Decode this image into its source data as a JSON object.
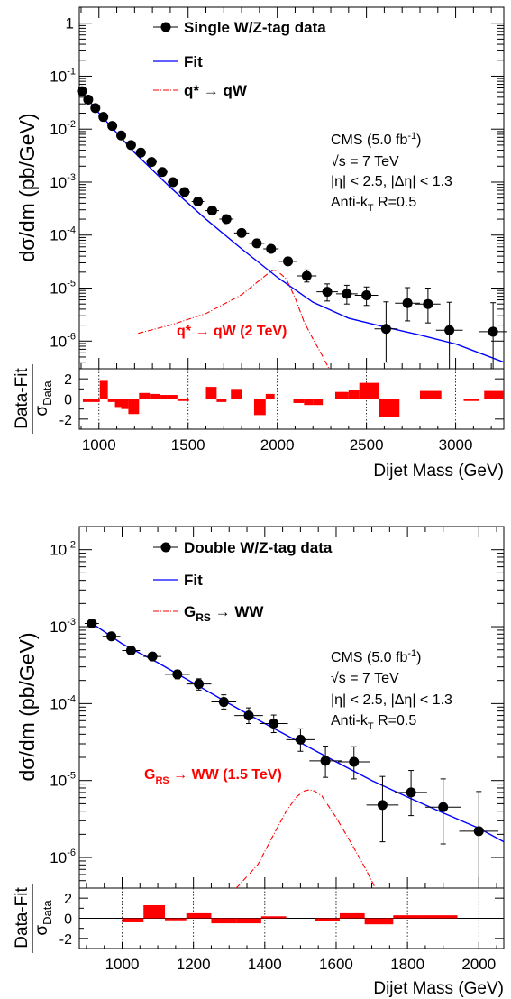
{
  "charts": [
    {
      "legend": {
        "data": "Single W/Z-tag data",
        "fit": "Fit",
        "signal": "q* → qW"
      },
      "info": {
        "line1": "CMS (5.0 fb",
        "line1_sup": "-1",
        "line1_end": ")",
        "line2": "√s = 7 TeV",
        "line3": "|η| < 2.5, |Δη| < 1.3",
        "line4_a": "Anti-k",
        "line4_sub": "T",
        "line4_b": " R=0.5"
      },
      "signal_label": "q* → qW (2 TeV)",
      "ylabel": "dσ/dm (pb/GeV)",
      "xlabel": "Dijet Mass (GeV)",
      "ratio_ylabel_num": "Data-Fit",
      "ratio_ylabel_den": "σ",
      "ratio_ylabel_den_sub": "Data",
      "x_ticks": [
        "1000",
        "1500",
        "2000",
        "2500",
        "3000"
      ],
      "y_ticks": [
        "10",
        "10",
        "10",
        "10",
        "10",
        "10",
        "10"
      ],
      "y_tick_exps": [
        "-6",
        "-5",
        "-4",
        "-3",
        "-2",
        "-1",
        ""
      ],
      "y_tick_main_one": "1",
      "ratio_ticks": [
        "2",
        "0",
        "-2"
      ]
    },
    {
      "legend": {
        "data": "Double W/Z-tag data",
        "fit": "Fit",
        "signal": "G",
        "signal_sub": "RS",
        "signal_end": " → WW"
      },
      "info": {
        "line1": "CMS (5.0 fb",
        "line1_sup": "-1",
        "line1_end": ")",
        "line2": "√s = 7 TeV",
        "line3": "|η| < 2.5, |Δη| < 1.3",
        "line4_a": "Anti-k",
        "line4_sub": "T",
        "line4_b": " R=0.5"
      },
      "signal_label": "G",
      "signal_label_sub": "RS",
      "signal_label_end": " → WW (1.5 TeV)",
      "ylabel": "dσ/dm (pb/GeV)",
      "xlabel": "Dijet Mass (GeV)",
      "ratio_ylabel_num": "Data-Fit",
      "ratio_ylabel_den": "σ",
      "ratio_ylabel_den_sub": "Data",
      "x_ticks": [
        "1000",
        "1200",
        "1400",
        "1600",
        "1800",
        "2000"
      ],
      "y_ticks": [
        "10",
        "10",
        "10",
        "10",
        "10"
      ],
      "y_tick_exps": [
        "-6",
        "-5",
        "-4",
        "-3",
        "-2"
      ],
      "ratio_ticks": [
        "2",
        "0",
        "-2"
      ]
    }
  ],
  "chart_data": [
    {
      "type": "scatter",
      "xlabel": "Dijet Mass (GeV)",
      "ylabel": "dσ/dm (pb/GeV)",
      "yscale": "log",
      "xlim": [
        890,
        3270
      ],
      "ylim": [
        3e-07,
        2.0
      ],
      "ratio_ylim": [
        -3,
        3
      ],
      "series": [
        {
          "name": "Single W/Z-tag data",
          "points": [
            {
              "x": 905,
              "y": 0.052,
              "xerr": 15,
              "yerr_up": 0,
              "yerr_down": 0
            },
            {
              "x": 940,
              "y": 0.036,
              "xerr": 18,
              "yerr_up": 0,
              "yerr_down": 0
            },
            {
              "x": 980,
              "y": 0.025,
              "xerr": 20,
              "yerr_up": 0,
              "yerr_down": 0
            },
            {
              "x": 1025,
              "y": 0.017,
              "xerr": 22,
              "yerr_up": 0,
              "yerr_down": 0
            },
            {
              "x": 1075,
              "y": 0.0115,
              "xerr": 24,
              "yerr_up": 0,
              "yerr_down": 0
            },
            {
              "x": 1125,
              "y": 0.0076,
              "xerr": 25,
              "yerr_up": 0,
              "yerr_down": 0
            },
            {
              "x": 1180,
              "y": 0.005,
              "xerr": 27,
              "yerr_up": 0,
              "yerr_down": 0
            },
            {
              "x": 1235,
              "y": 0.0036,
              "xerr": 28,
              "yerr_up": 0,
              "yerr_down": 0
            },
            {
              "x": 1295,
              "y": 0.0024,
              "xerr": 30,
              "yerr_up": 0,
              "yerr_down": 0
            },
            {
              "x": 1355,
              "y": 0.00155,
              "xerr": 30,
              "yerr_up": 0,
              "yerr_down": 0
            },
            {
              "x": 1415,
              "y": 0.001,
              "xerr": 30,
              "yerr_up": 0,
              "yerr_down": 0
            },
            {
              "x": 1480,
              "y": 0.00065,
              "xerr": 32,
              "yerr_up": 0,
              "yerr_down": 0
            },
            {
              "x": 1555,
              "y": 0.00043,
              "xerr": 35,
              "yerr_up": 0,
              "yerr_down": 0
            },
            {
              "x": 1635,
              "y": 0.00029,
              "xerr": 38,
              "yerr_up": 0,
              "yerr_down": 0
            },
            {
              "x": 1715,
              "y": 0.0002,
              "xerr": 40,
              "yerr_up": 0,
              "yerr_down": 0
            },
            {
              "x": 1800,
              "y": 0.00011,
              "xerr": 42,
              "yerr_up": 0,
              "yerr_down": 0
            },
            {
              "x": 1885,
              "y": 7e-05,
              "xerr": 43,
              "yerr_up": 0,
              "yerr_down": 0
            },
            {
              "x": 1965,
              "y": 5.5e-05,
              "xerr": 43,
              "yerr_up": 0,
              "yerr_down": 0
            },
            {
              "x": 2060,
              "y": 3.2e-05,
              "xerr": 50,
              "yerr_up": 6e-06,
              "yerr_down": 5e-06
            },
            {
              "x": 2165,
              "y": 1.7e-05,
              "xerr": 55,
              "yerr_up": 5e-06,
              "yerr_down": 4e-06
            },
            {
              "x": 2280,
              "y": 8.5e-06,
              "xerr": 60,
              "yerr_up": 3.5e-06,
              "yerr_down": 2.8e-06
            },
            {
              "x": 2390,
              "y": 7.8e-06,
              "xerr": 60,
              "yerr_up": 3.5e-06,
              "yerr_down": 2.8e-06
            },
            {
              "x": 2500,
              "y": 7.3e-06,
              "xerr": 65,
              "yerr_up": 3.2e-06,
              "yerr_down": 2.6e-06
            },
            {
              "x": 2610,
              "y": 1.7e-06,
              "xerr": 65,
              "yerr_up": 3.8e-06,
              "yerr_down": 1.3e-06
            },
            {
              "x": 2730,
              "y": 5.2e-06,
              "xerr": 70,
              "yerr_up": 5e-06,
              "yerr_down": 2.8e-06
            },
            {
              "x": 2845,
              "y": 5e-06,
              "xerr": 70,
              "yerr_up": 5e-06,
              "yerr_down": 2.8e-06
            },
            {
              "x": 2965,
              "y": 1.6e-06,
              "xerr": 75,
              "yerr_up": 3.8e-06,
              "yerr_down": 1.3e-06
            },
            {
              "x": 3210,
              "y": 1.5e-06,
              "xerr": 80,
              "yerr_up": 3.8e-06,
              "yerr_down": 1.3e-06
            }
          ]
        },
        {
          "name": "Fit",
          "type": "line",
          "x": [
            890,
            1000,
            1200,
            1400,
            1600,
            1800,
            2000,
            2200,
            2400,
            2600,
            2800,
            3000,
            3270
          ],
          "y": [
            0.06,
            0.02,
            0.0036,
            0.0008,
            0.0002,
            5.5e-05,
            1.6e-05,
            5.4e-06,
            2.7e-06,
            1.85e-06,
            1.3e-06,
            8.8e-07,
            4e-07
          ]
        },
        {
          "name": "q* → qW",
          "type": "line",
          "x": [
            1220,
            1400,
            1600,
            1800,
            1900,
            1950,
            1980,
            2000,
            2050,
            2100,
            2150,
            2200,
            2250,
            2290
          ],
          "y": [
            1.4e-06,
            2e-06,
            3.3e-06,
            7.5e-06,
            1.4e-05,
            1.9e-05,
            2.2e-05,
            2.1e-05,
            1.5e-05,
            6.5e-06,
            2.3e-06,
            1.1e-06,
            5.5e-07,
            3e-07
          ]
        }
      ],
      "residuals": [
        {
          "x0": 910,
          "x1": 1005,
          "v": -0.3
        },
        {
          "x0": 1005,
          "x1": 1050,
          "v": 1.8
        },
        {
          "x0": 1050,
          "x1": 1090,
          "v": -0.3
        },
        {
          "x0": 1090,
          "x1": 1125,
          "v": -0.8
        },
        {
          "x0": 1125,
          "x1": 1165,
          "v": -1.0
        },
        {
          "x0": 1165,
          "x1": 1225,
          "v": -1.5
        },
        {
          "x0": 1225,
          "x1": 1285,
          "v": 0.6
        },
        {
          "x0": 1285,
          "x1": 1345,
          "v": 0.5
        },
        {
          "x0": 1345,
          "x1": 1385,
          "v": 0.4
        },
        {
          "x0": 1385,
          "x1": 1440,
          "v": 0.4
        },
        {
          "x0": 1440,
          "x1": 1505,
          "v": -0.2
        },
        {
          "x0": 1600,
          "x1": 1660,
          "v": 1.2
        },
        {
          "x0": 1660,
          "x1": 1715,
          "v": -0.3
        },
        {
          "x0": 1740,
          "x1": 1800,
          "v": 1.0
        },
        {
          "x0": 1870,
          "x1": 1935,
          "v": -1.6
        },
        {
          "x0": 1935,
          "x1": 1985,
          "v": 0.5
        },
        {
          "x0": 2090,
          "x1": 2150,
          "v": -0.4
        },
        {
          "x0": 2150,
          "x1": 2200,
          "v": -0.6
        },
        {
          "x0": 2200,
          "x1": 2255,
          "v": -0.6
        },
        {
          "x0": 2325,
          "x1": 2400,
          "v": 0.7
        },
        {
          "x0": 2400,
          "x1": 2460,
          "v": 0.9
        },
        {
          "x0": 2460,
          "x1": 2570,
          "v": 1.6
        },
        {
          "x0": 2570,
          "x1": 2685,
          "v": -1.8
        },
        {
          "x0": 2800,
          "x1": 2920,
          "v": 0.8
        },
        {
          "x0": 3045,
          "x1": 3130,
          "v": -0.2
        },
        {
          "x0": 3160,
          "x1": 3270,
          "v": 0.8
        }
      ]
    },
    {
      "type": "scatter",
      "xlabel": "Dijet Mass (GeV)",
      "ylabel": "dσ/dm (pb/GeV)",
      "yscale": "log",
      "xlim": [
        880,
        2070
      ],
      "ylim": [
        4e-07,
        0.02
      ],
      "ratio_ylim": [
        -3,
        3
      ],
      "series": [
        {
          "name": "Double W/Z-tag data",
          "points": [
            {
              "x": 915,
              "y": 0.0011,
              "xerr": 20,
              "yerr_up": 0,
              "yerr_down": 0
            },
            {
              "x": 970,
              "y": 0.00075,
              "xerr": 25,
              "yerr_up": 0,
              "yerr_down": 0
            },
            {
              "x": 1025,
              "y": 0.00049,
              "xerr": 25,
              "yerr_up": 4e-05,
              "yerr_down": 4e-05
            },
            {
              "x": 1085,
              "y": 0.00041,
              "xerr": 25,
              "yerr_up": 5e-05,
              "yerr_down": 5e-05
            },
            {
              "x": 1155,
              "y": 0.00024,
              "xerr": 35,
              "yerr_up": 3e-05,
              "yerr_down": 3e-05
            },
            {
              "x": 1215,
              "y": 0.00018,
              "xerr": 35,
              "yerr_up": 3e-05,
              "yerr_down": 3e-05
            },
            {
              "x": 1285,
              "y": 0.000105,
              "xerr": 35,
              "yerr_up": 2.5e-05,
              "yerr_down": 2e-05
            },
            {
              "x": 1355,
              "y": 7e-05,
              "xerr": 40,
              "yerr_up": 1.8e-05,
              "yerr_down": 1.5e-05
            },
            {
              "x": 1425,
              "y": 5.5e-05,
              "xerr": 40,
              "yerr_up": 1.6e-05,
              "yerr_down": 1.3e-05
            },
            {
              "x": 1500,
              "y": 3.4e-05,
              "xerr": 40,
              "yerr_up": 1.3e-05,
              "yerr_down": 1e-05
            },
            {
              "x": 1570,
              "y": 1.8e-05,
              "xerr": 45,
              "yerr_up": 1e-05,
              "yerr_down": 7e-06
            },
            {
              "x": 1650,
              "y": 1.75e-05,
              "xerr": 45,
              "yerr_up": 1e-05,
              "yerr_down": 7e-06
            },
            {
              "x": 1730,
              "y": 4.8e-06,
              "xerr": 45,
              "yerr_up": 6.5e-06,
              "yerr_down": 3.2e-06
            },
            {
              "x": 1810,
              "y": 7e-06,
              "xerr": 45,
              "yerr_up": 6.5e-06,
              "yerr_down": 3.5e-06
            },
            {
              "x": 1900,
              "y": 4.5e-06,
              "xerr": 50,
              "yerr_up": 6e-06,
              "yerr_down": 3e-06
            },
            {
              "x": 2000,
              "y": 2.2e-06,
              "xerr": 55,
              "yerr_up": 5e-06,
              "yerr_down": 1.8e-06
            }
          ]
        },
        {
          "name": "Fit",
          "type": "line",
          "x": [
            910,
            1000,
            1100,
            1200,
            1300,
            1400,
            1500,
            1600,
            1700,
            1800,
            1900,
            2000,
            2070
          ],
          "y": [
            0.00115,
            0.0006,
            0.00034,
            0.000185,
            0.0001,
            5.5e-05,
            3.1e-05,
            1.75e-05,
            1e-05,
            6.1e-06,
            3.8e-06,
            2.4e-06,
            1.6e-06
          ]
        },
        {
          "name": "Gₐₛ → WW",
          "type": "line",
          "x": [
            1320,
            1380,
            1420,
            1460,
            1490,
            1510,
            1525,
            1540,
            1560,
            1600,
            1640,
            1680,
            1710
          ],
          "y": [
            4e-07,
            8e-07,
            1.8e-06,
            4e-06,
            6.2e-06,
            7.3e-06,
            7.6e-06,
            7.3e-06,
            6.3e-06,
            3.3e-06,
            1.6e-06,
            7.5e-07,
            4e-07
          ]
        }
      ],
      "residuals": [
        {
          "x0": 1000,
          "x1": 1060,
          "v": -0.4
        },
        {
          "x0": 1060,
          "x1": 1120,
          "v": 1.3
        },
        {
          "x0": 1120,
          "x1": 1180,
          "v": -0.2
        },
        {
          "x0": 1180,
          "x1": 1250,
          "v": 0.5
        },
        {
          "x0": 1250,
          "x1": 1320,
          "v": -0.5
        },
        {
          "x0": 1320,
          "x1": 1390,
          "v": -0.5
        },
        {
          "x0": 1390,
          "x1": 1460,
          "v": 0.2
        },
        {
          "x0": 1540,
          "x1": 1610,
          "v": -0.3
        },
        {
          "x0": 1610,
          "x1": 1680,
          "v": 0.5
        },
        {
          "x0": 1680,
          "x1": 1760,
          "v": -0.6
        },
        {
          "x0": 1760,
          "x1": 1840,
          "v": 0.3
        },
        {
          "x0": 1840,
          "x1": 1940,
          "v": 0.3
        }
      ]
    }
  ]
}
